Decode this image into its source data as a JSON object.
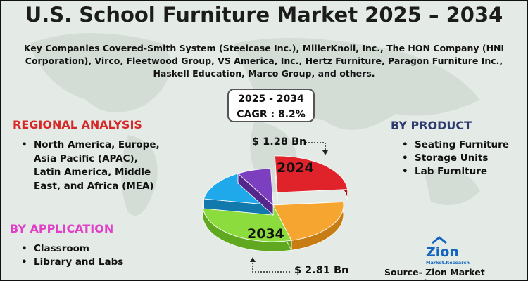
{
  "header": {
    "title": "U.S. School Furniture Market 2025 – 2034",
    "key_companies": "Key Companies Covered-Smith System (Steelcase Inc.), MillerKnoll, Inc., The HON Company (HNI Corporation), Virco, Fleetwood Group, VS America, Inc., Hertz Furniture, Paragon Furniture Inc., Haskell Education, Marco Group, and others."
  },
  "cagr": {
    "period": "2025 - 2034",
    "rate": "CAGR : 8.2%"
  },
  "regional": {
    "heading": "REGIONAL ANALYSIS",
    "items": [
      "North America, Europe, Asia Pacific (APAC), Latin America, Middle East, and Africa (MEA)"
    ]
  },
  "application": {
    "heading": "BY APPLICATION",
    "items": [
      "Classroom",
      "Library and Labs"
    ]
  },
  "product": {
    "heading": "BY PRODUCT",
    "items": [
      "Seating Furniture",
      "Storage Units",
      "Lab Furniture"
    ]
  },
  "pie": {
    "label_2024": "2024",
    "value_2024": "$ 1.28 Bn",
    "label_2034": "2034",
    "value_2034": "$ 2.81 Bn"
  },
  "logo": {
    "name": "Zion",
    "sub": "Market.Research"
  },
  "source": "Source- Zion Market Research"
}
